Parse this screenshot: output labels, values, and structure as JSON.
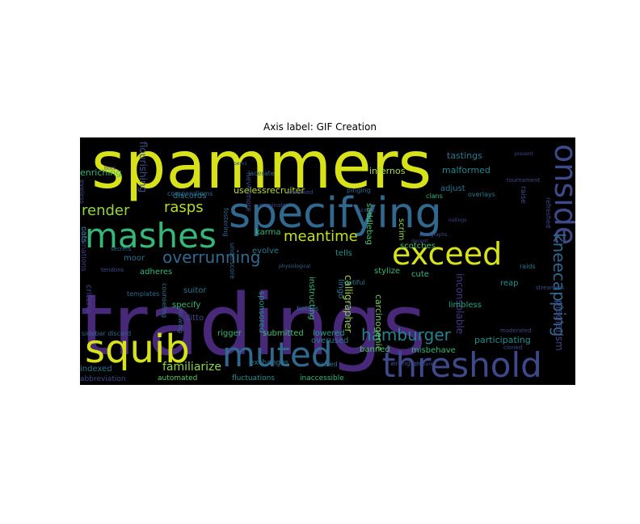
{
  "chart_data": {
    "type": "wordcloud",
    "title": "Axis label: GIF Creation",
    "background": "#000000",
    "palette": "viridis",
    "words": [
      {
        "text": "tradings",
        "color": "#482878"
      },
      {
        "text": "spammers",
        "color": "#d8e219"
      },
      {
        "text": "specifying",
        "color": "#31688e"
      },
      {
        "text": "threshold",
        "color": "#3e4989"
      },
      {
        "text": "muted",
        "color": "#31688e"
      },
      {
        "text": "squib",
        "color": "#d8e219"
      },
      {
        "text": "mashes",
        "color": "#35b779"
      },
      {
        "text": "exceed",
        "color": "#d8e219"
      },
      {
        "text": "onside",
        "color": "#3e4989"
      },
      {
        "text": "kneecapping",
        "color": "#31688e"
      },
      {
        "text": "hamburger",
        "color": "#26828e"
      },
      {
        "text": "overrunning",
        "color": "#31688e"
      },
      {
        "text": "render",
        "color": "#90d743"
      },
      {
        "text": "rasps",
        "color": "#b5de2b"
      },
      {
        "text": "meantime",
        "color": "#c2df23"
      },
      {
        "text": "familiarize",
        "color": "#90d743"
      },
      {
        "text": "plagiarism",
        "color": "#3e4989"
      },
      {
        "text": "inconsolable",
        "color": "#443a83"
      },
      {
        "text": "calligrapher",
        "color": "#a5db36"
      },
      {
        "text": "carcinogenic",
        "color": "#73d056"
      },
      {
        "text": "participating",
        "color": "#21918c"
      },
      {
        "text": "uselessrecruiter",
        "color": "#bddf26"
      },
      {
        "text": "flourishing",
        "color": "#3b528b"
      },
      {
        "text": "enriching",
        "color": "#35b779"
      },
      {
        "text": "infernos",
        "color": "#a5db36"
      },
      {
        "text": "malformed",
        "color": "#25858e"
      },
      {
        "text": "tastings",
        "color": "#2a788e"
      },
      {
        "text": "adjust",
        "color": "#2a788e"
      },
      {
        "text": "discords",
        "color": "#26828e"
      },
      {
        "text": "saddlebag",
        "color": "#46c06f"
      },
      {
        "text": "scrim",
        "color": "#90d743"
      },
      {
        "text": "karma",
        "color": "#35b779"
      },
      {
        "text": "evolve",
        "color": "#2a788e"
      },
      {
        "text": "tells",
        "color": "#21918c"
      },
      {
        "text": "scotches",
        "color": "#46c06f"
      },
      {
        "text": "stylize",
        "color": "#35b779"
      },
      {
        "text": "cute",
        "color": "#35b779"
      },
      {
        "text": "limbless",
        "color": "#1fa187"
      },
      {
        "text": "reap",
        "color": "#21918c"
      },
      {
        "text": "moor",
        "color": "#2c728e"
      },
      {
        "text": "adheres",
        "color": "#35b779"
      },
      {
        "text": "suitor",
        "color": "#2c728e"
      },
      {
        "text": "specify",
        "color": "#38b977"
      },
      {
        "text": "ditto",
        "color": "#3e4989"
      },
      {
        "text": "rigger",
        "color": "#35b779"
      },
      {
        "text": "submitted",
        "color": "#46c06f"
      },
      {
        "text": "lowered",
        "color": "#1f9e89"
      },
      {
        "text": "overused",
        "color": "#2a788e"
      },
      {
        "text": "banned",
        "color": "#4ac16d"
      },
      {
        "text": "misbehave",
        "color": "#35b779"
      },
      {
        "text": "indexed",
        "color": "#2a788e"
      },
      {
        "text": "automated",
        "color": "#5ec962"
      },
      {
        "text": "fluctuations",
        "color": "#21918c"
      },
      {
        "text": "inaccessible",
        "color": "#35b779"
      },
      {
        "text": "abbreviation",
        "color": "#3e4989"
      },
      {
        "text": "criteria",
        "color": "#3e4989"
      },
      {
        "text": "nominations",
        "color": "#443a83"
      },
      {
        "text": "cats",
        "color": "#2a788e"
      },
      {
        "text": "sidebar discord",
        "color": "#31688e"
      },
      {
        "text": "exchanges",
        "color": "#2a788e"
      },
      {
        "text": "raised",
        "color": "#2a788e"
      },
      {
        "text": "wranglers",
        "color": "#3e4989"
      },
      {
        "text": "instructing",
        "color": "#35b779"
      },
      {
        "text": "lingo",
        "color": "#2a788e"
      },
      {
        "text": "compendiums",
        "color": "#31688e"
      },
      {
        "text": "overlays",
        "color": "#2a788e"
      },
      {
        "text": "clans",
        "color": "#35b779"
      },
      {
        "text": "raise",
        "color": "#3e4989"
      },
      {
        "text": "sponsored",
        "color": "#21918c"
      },
      {
        "text": "bottles",
        "color": "#31688e"
      },
      {
        "text": "counseling",
        "color": "#2a788e"
      },
      {
        "text": "lacerate",
        "color": "#31688e"
      },
      {
        "text": "fostering",
        "color": "#31688e"
      },
      {
        "text": "dutiful",
        "color": "#2a788e"
      },
      {
        "text": "pinging",
        "color": "#31688e"
      },
      {
        "text": "refreshed",
        "color": "#3e4989"
      },
      {
        "text": "raids",
        "color": "#2a788e"
      },
      {
        "text": "templates",
        "color": "#31688e"
      },
      {
        "text": "secrets",
        "color": "#31688e"
      },
      {
        "text": "underscore",
        "color": "#31688e"
      },
      {
        "text": "nevermore",
        "color": "#3e4989"
      },
      {
        "text": "soliloquy",
        "color": "#3e4989"
      },
      {
        "text": "eyeless",
        "color": "#3e4989"
      },
      {
        "text": "tournament",
        "color": "#3e4989"
      },
      {
        "text": "moderated",
        "color": "#3e4989"
      },
      {
        "text": "streamers",
        "color": "#3e4989"
      },
      {
        "text": "nominate",
        "color": "#3e4989"
      },
      {
        "text": "drawing",
        "color": "#31688e"
      },
      {
        "text": "cloned",
        "color": "#3e4989"
      },
      {
        "text": "paragraphs",
        "color": "#3e4989"
      },
      {
        "text": "physiological",
        "color": "#31688e"
      },
      {
        "text": "outings",
        "color": "#3e4989"
      },
      {
        "text": "prepare",
        "color": "#3e4989"
      },
      {
        "text": "decent",
        "color": "#3e4989"
      },
      {
        "text": "perks",
        "color": "#3e4989"
      },
      {
        "text": "present",
        "color": "#3e4989"
      },
      {
        "text": "brick",
        "color": "#3e4989"
      },
      {
        "text": "tendons",
        "color": "#3e4989"
      },
      {
        "text": "reworked",
        "color": "#3e4989"
      },
      {
        "text": "scenic",
        "color": "#3e4989"
      }
    ]
  }
}
